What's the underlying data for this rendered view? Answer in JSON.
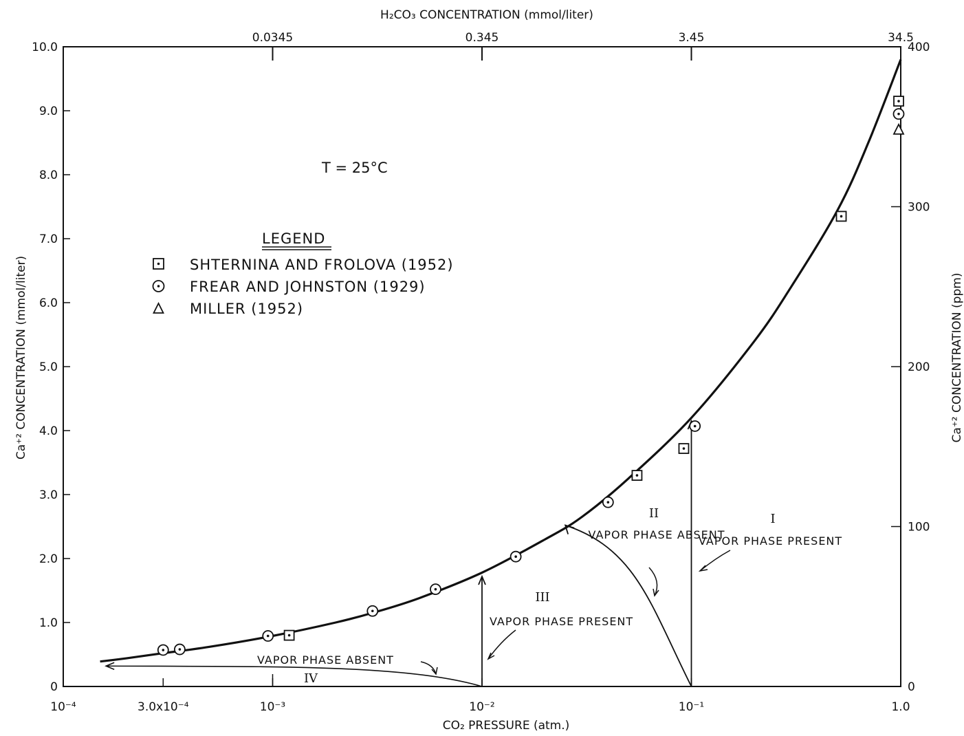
{
  "chart_data": {
    "type": "line",
    "xlabel": "CO₂ PRESSURE (atm.)",
    "ylabel": "Ca⁺² CONCENTRATION (mmol/liter)",
    "ylabel_right": "Ca⁺² CONCENTRATION (ppm)",
    "xlabel_top": "H₂CO₃ CONCENTRATION (mmol/liter)",
    "x_scale": "log",
    "xlim": [
      0.0001,
      1.0
    ],
    "ylim": [
      0,
      10
    ],
    "ylim_right": [
      0,
      400
    ],
    "x_ticks": [
      {
        "value": 0.0001,
        "label": "10⁻⁴"
      },
      {
        "value": 0.0003,
        "label": "3.0x10⁻⁴"
      },
      {
        "value": 0.001,
        "label": "10⁻³"
      },
      {
        "value": 0.01,
        "label": "10⁻²"
      },
      {
        "value": 0.1,
        "label": "10⁻¹"
      },
      {
        "value": 1.0,
        "label": "1.0"
      }
    ],
    "y_ticks": [
      "0",
      "1.0",
      "2.0",
      "3.0",
      "4.0",
      "5.0",
      "6.0",
      "7.0",
      "8.0",
      "9.0",
      "10.0"
    ],
    "y_right_ticks": [
      "0",
      "100",
      "200",
      "300",
      "400"
    ],
    "top_ticks": [
      {
        "value": 0.001,
        "label": "0.0345"
      },
      {
        "value": 0.01,
        "label": "0.345"
      },
      {
        "value": 0.1,
        "label": "3.45"
      },
      {
        "value": 1.0,
        "label": "34.5"
      }
    ],
    "annotation_temp": "T = 25°C",
    "legend_title": "LEGEND",
    "legend_entries": [
      {
        "marker": "square-dot",
        "label": "SHTERNINA AND FROLOVA (1952)"
      },
      {
        "marker": "circle-dot",
        "label": "FREAR AND JOHNSTON (1929)"
      },
      {
        "marker": "triangle",
        "label": "MILLER (1952)"
      }
    ],
    "curve": {
      "x": [
        0.00015,
        0.0002,
        0.0003,
        0.0005,
        0.001,
        0.002,
        0.003,
        0.005,
        0.01,
        0.02,
        0.03,
        0.05,
        0.1,
        0.2,
        0.3,
        0.5,
        0.7,
        1.0
      ],
      "y": [
        0.39,
        0.44,
        0.52,
        0.62,
        0.79,
        1.0,
        1.15,
        1.38,
        1.78,
        2.3,
        2.65,
        3.25,
        4.2,
        5.4,
        6.25,
        7.45,
        8.5,
        9.8
      ]
    },
    "series": [
      {
        "name": "SHTERNINA AND FROLOVA (1952)",
        "marker": "square-dot",
        "x": [
          0.0012,
          0.055,
          0.092,
          0.52,
          1.0
        ],
        "y": [
          0.8,
          3.3,
          3.72,
          7.35,
          9.15
        ]
      },
      {
        "name": "FREAR AND JOHNSTON (1929)",
        "marker": "circle-dot",
        "x": [
          0.0003,
          0.00036,
          0.00095,
          0.003,
          0.006,
          0.0145,
          0.04,
          0.104,
          0.99
        ],
        "y": [
          0.57,
          0.58,
          0.79,
          1.18,
          1.52,
          2.03,
          2.88,
          4.07,
          8.95
        ]
      },
      {
        "name": "MILLER (1952)",
        "marker": "triangle",
        "x": [
          1.0
        ],
        "y": [
          8.7
        ]
      }
    ],
    "regions": [
      {
        "numeral": "I",
        "x": 0.22,
        "y": 2.65,
        "text": "VAPOR PHASE PRESENT"
      },
      {
        "numeral": "II",
        "x": 0.045,
        "y": 2.7,
        "text": "VAPOR PHASE ABSENT"
      },
      {
        "numeral": "III",
        "x": 0.0145,
        "y": 1.4,
        "text": "VAPOR PHASE PRESENT"
      },
      {
        "numeral": "IV",
        "x": 0.0013,
        "y": 0.12,
        "text": "VAPOR PHASE ABSENT"
      }
    ]
  }
}
